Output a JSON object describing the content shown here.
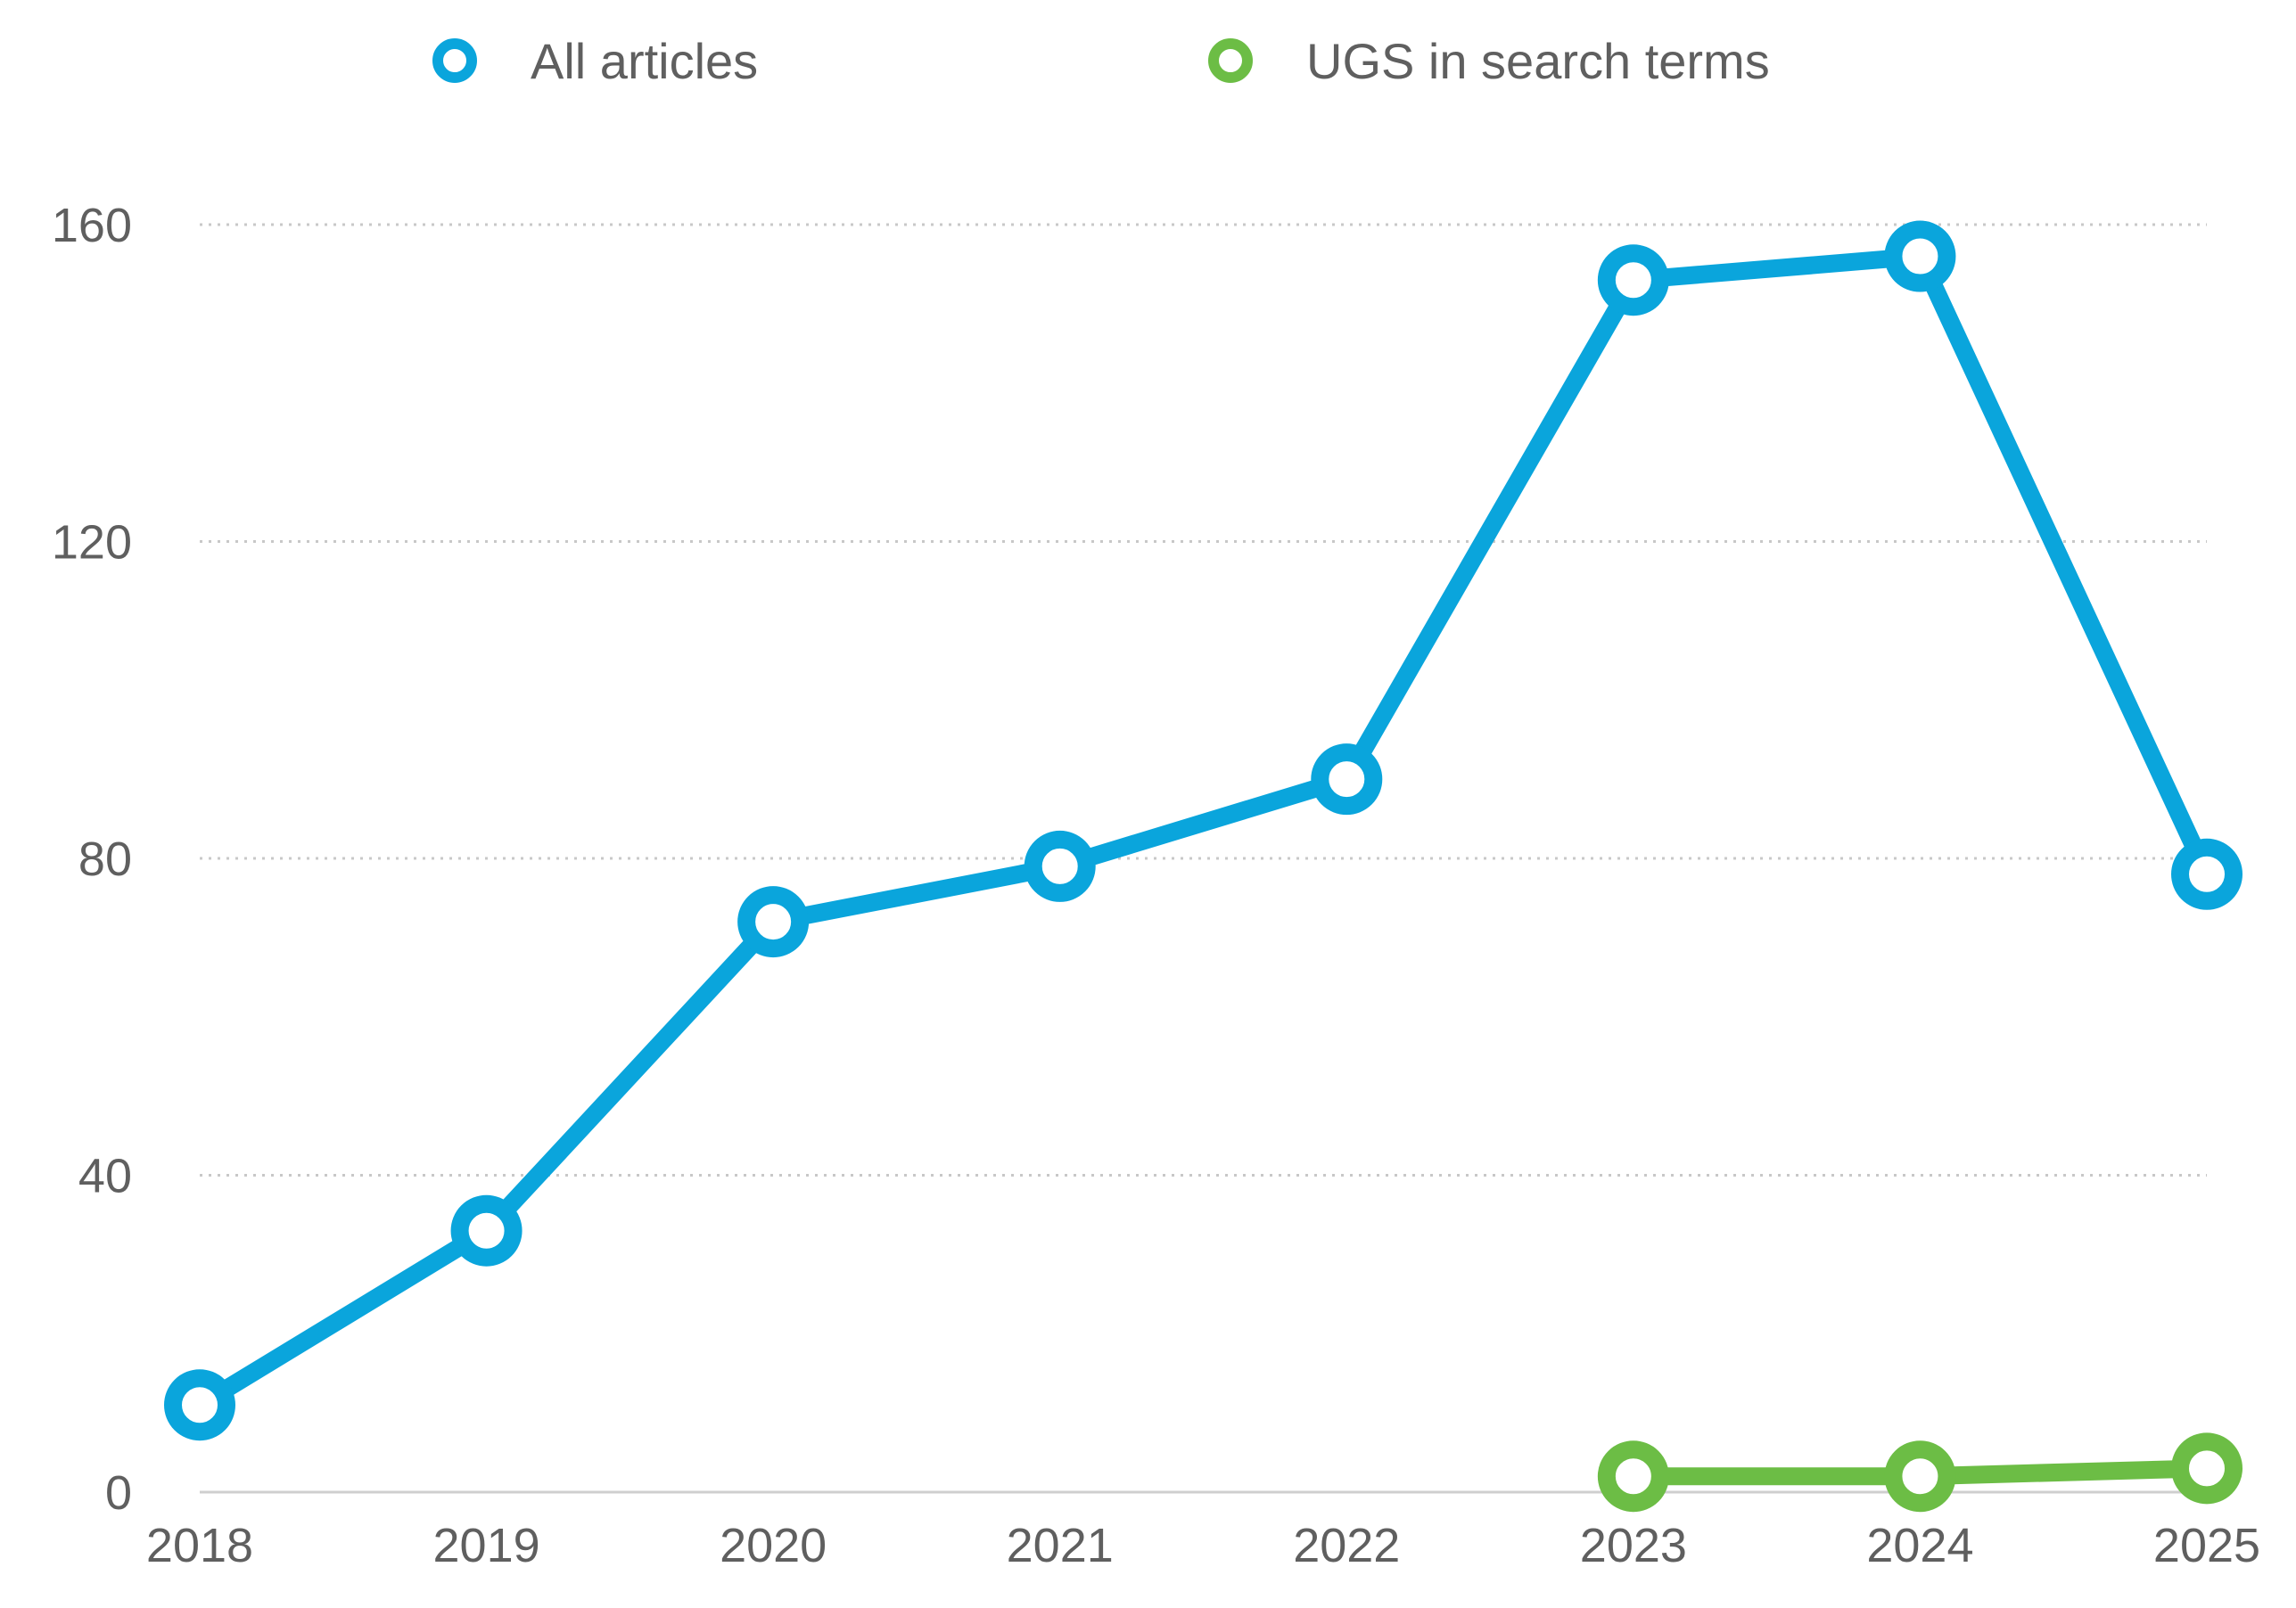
{
  "chart_data": {
    "type": "line",
    "categories": [
      "2018",
      "2019",
      "2020",
      "2021",
      "2022",
      "2023",
      "2024",
      "2025"
    ],
    "series": [
      {
        "name": "All articles",
        "color": "#0aa5dc",
        "values": [
          11,
          33,
          72,
          79,
          90,
          153,
          156,
          78
        ]
      },
      {
        "name": "UGS in search terms",
        "color": "#6cbd45",
        "values": [
          null,
          null,
          null,
          null,
          null,
          2,
          2,
          3
        ]
      }
    ],
    "yticks": [
      "0",
      "40",
      "80",
      "120",
      "160"
    ],
    "ylim": [
      0,
      160
    ],
    "grid": true,
    "legend_position": "top-center",
    "colors": {
      "grid": "#c8c8c8",
      "axis": "#cfcfcf",
      "text": "#5f5f5f"
    }
  }
}
